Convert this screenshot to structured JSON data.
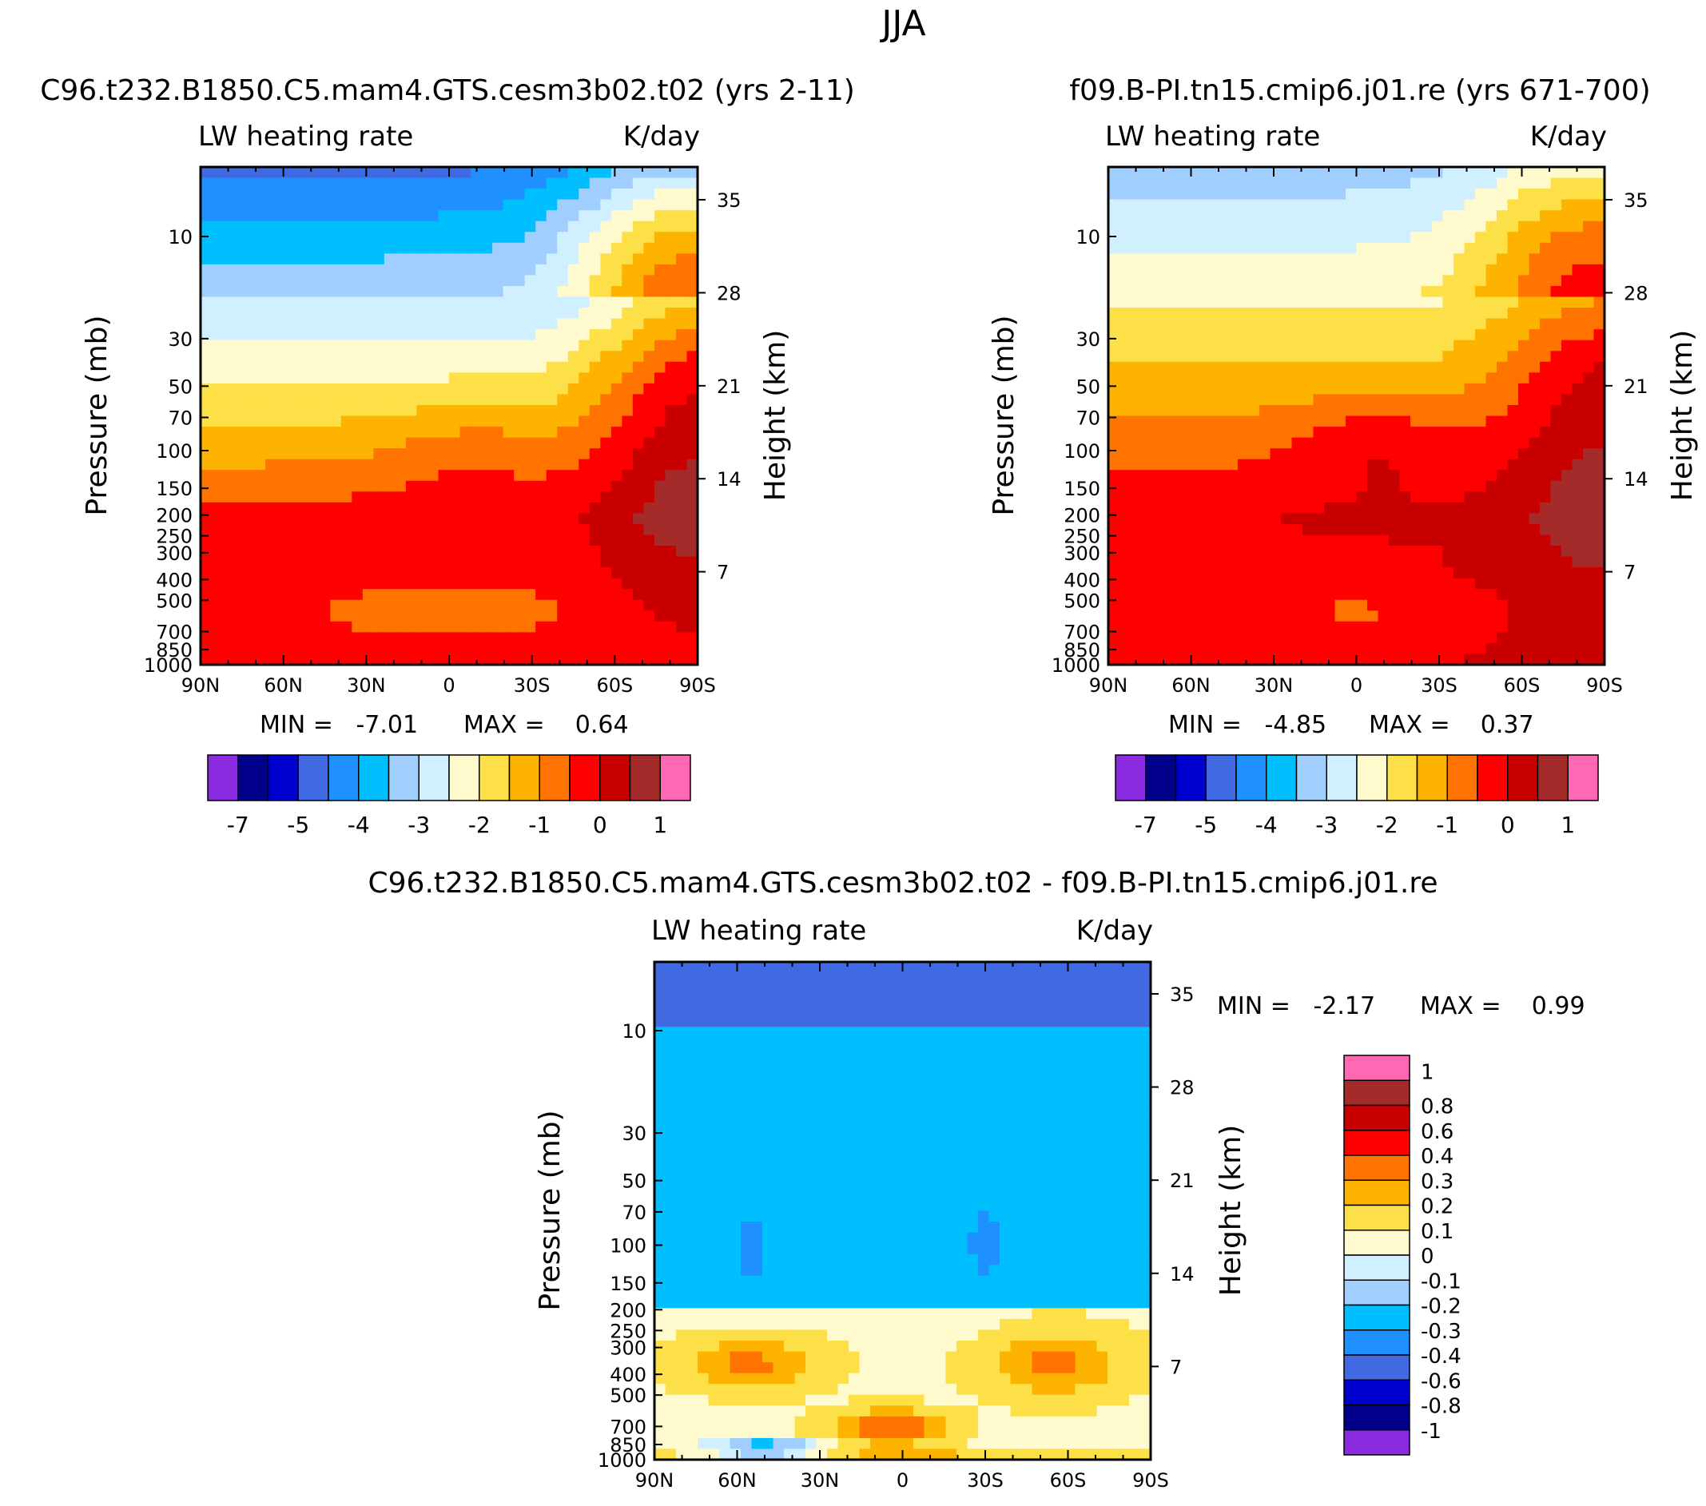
{
  "figure": {
    "season": "JJA"
  },
  "panels": [
    {
      "id": "left",
      "run_title": "C96.t232.B1850.C5.mam4.GTS.cesm3b02.t02 (yrs 2-11)",
      "field_label": "LW heating rate",
      "units": "K/day",
      "ylabel": "Pressure (mb)",
      "ylabel_right": "Height (km)",
      "min_text": "MIN =   -7.01",
      "max_text": "MAX =    0.64"
    },
    {
      "id": "right",
      "run_title": "f09.B-PI.tn15.cmip6.j01.re (yrs 671-700)",
      "field_label": "LW heating rate",
      "units": "K/day",
      "ylabel": "Pressure (mb)",
      "ylabel_right": "Height (km)",
      "min_text": "MIN =   -4.85",
      "max_text": "MAX =    0.37"
    },
    {
      "id": "diff",
      "run_title": "C96.t232.B1850.C5.mam4.GTS.cesm3b02.t02 - f09.B-PI.tn15.cmip6.j01.re",
      "field_label": "LW heating rate",
      "units": "K/day",
      "ylabel": "Pressure (mb)",
      "ylabel_right": "Height (km)",
      "min_text": "MIN =   -2.17",
      "max_text": "MAX =    0.99"
    }
  ],
  "colors": {
    "palette": [
      "#8a2be2",
      "#00008b",
      "#0000cd",
      "#4169e1",
      "#1e90ff",
      "#00bfff",
      "#a0cfff",
      "#d0f0ff",
      "#fffacd",
      "#fde047",
      "#fdb300",
      "#ff7300",
      "#ff0000",
      "#c80000",
      "#a52a2a",
      "#ff69b4"
    ]
  },
  "chart_data": [
    {
      "type": "heatmap",
      "title": "C96.t232.B1850.C5.mam4.GTS.cesm3b02.t02 (yrs 2-11)",
      "field": "LW heating rate",
      "units": "K/day",
      "xlabel": "",
      "ylabel": "Pressure (mb)",
      "ylabel_right": "Height (km)",
      "x_ticks": [
        "90N",
        "60N",
        "30N",
        "0",
        "30S",
        "60S",
        "90S"
      ],
      "y_ticks": [
        "10",
        "30",
        "50",
        "70",
        "100",
        "150",
        "200",
        "250",
        "300",
        "400",
        "500",
        "700",
        "850",
        "1000"
      ],
      "y_ticks_right": [
        "35",
        "28",
        "21",
        "14",
        "7"
      ],
      "y_scale": "log",
      "min": -7.01,
      "max": 0.64,
      "levels_labels": [
        "-7",
        "-5",
        "-4",
        "-3",
        "-2",
        "-1",
        "0",
        "1"
      ],
      "colorbar": "horizontal"
    },
    {
      "type": "heatmap",
      "title": "f09.B-PI.tn15.cmip6.j01.re (yrs 671-700)",
      "field": "LW heating rate",
      "units": "K/day",
      "xlabel": "",
      "ylabel": "Pressure (mb)",
      "ylabel_right": "Height (km)",
      "x_ticks": [
        "90N",
        "60N",
        "30N",
        "0",
        "30S",
        "60S",
        "90S"
      ],
      "y_ticks": [
        "10",
        "30",
        "50",
        "70",
        "100",
        "150",
        "200",
        "250",
        "300",
        "400",
        "500",
        "700",
        "850",
        "1000"
      ],
      "y_ticks_right": [
        "35",
        "28",
        "21",
        "14",
        "7"
      ],
      "y_scale": "log",
      "min": -4.85,
      "max": 0.37,
      "levels_labels": [
        "-7",
        "-5",
        "-4",
        "-3",
        "-2",
        "-1",
        "0",
        "1"
      ],
      "colorbar": "horizontal"
    },
    {
      "type": "heatmap",
      "title": "C96.t232.B1850.C5.mam4.GTS.cesm3b02.t02 - f09.B-PI.tn15.cmip6.j01.re",
      "field": "LW heating rate",
      "units": "K/day",
      "xlabel": "",
      "ylabel": "Pressure (mb)",
      "ylabel_right": "Height (km)",
      "x_ticks": [
        "90N",
        "60N",
        "30N",
        "0",
        "30S",
        "60S",
        "90S"
      ],
      "y_ticks": [
        "10",
        "30",
        "50",
        "70",
        "100",
        "150",
        "200",
        "250",
        "300",
        "400",
        "500",
        "700",
        "850",
        "1000"
      ],
      "y_ticks_right": [
        "35",
        "28",
        "21",
        "14",
        "7"
      ],
      "y_scale": "log",
      "min": -2.17,
      "max": 0.99,
      "levels_labels": [
        "1",
        "0.8",
        "0.6",
        "0.4",
        "0.3",
        "0.2",
        "0.1",
        "0",
        "-0.1",
        "-0.2",
        "-0.3",
        "-0.4",
        "-0.6",
        "-0.8",
        "-1"
      ],
      "colorbar": "vertical"
    }
  ]
}
